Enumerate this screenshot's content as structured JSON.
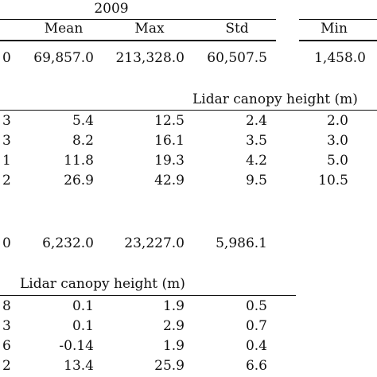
{
  "header": {
    "year": "2009",
    "columns": [
      "Mean",
      "Max",
      "Std"
    ],
    "right_column": "Min"
  },
  "row_top": {
    "lead": "0",
    "values": [
      "69,857.0",
      "213,328.0",
      "60,507.5"
    ],
    "min": "1,458.0"
  },
  "lidar_block_1": {
    "title": "Lidar canopy height (m)",
    "rows": [
      {
        "lead": "3",
        "values": [
          "5.4",
          "12.5",
          "2.4"
        ],
        "min": "2.0"
      },
      {
        "lead": "3",
        "values": [
          "8.2",
          "16.1",
          "3.5"
        ],
        "min": "3.0"
      },
      {
        "lead": "1",
        "values": [
          "11.8",
          "19.3",
          "4.2"
        ],
        "min": "5.0"
      },
      {
        "lead": "2",
        "values": [
          "26.9",
          "42.9",
          "9.5"
        ],
        "min": "10.5"
      }
    ]
  },
  "row_mid": {
    "lead": "0",
    "values": [
      "6,232.0",
      "23,227.0",
      "5,986.1"
    ]
  },
  "lidar_block_2": {
    "title": "Lidar canopy height (m)",
    "rows": [
      {
        "lead": "8",
        "values": [
          "0.1",
          "1.9",
          "0.5"
        ]
      },
      {
        "lead": "3",
        "values": [
          "0.1",
          "2.9",
          "0.7"
        ]
      },
      {
        "lead": "6",
        "values": [
          "-0.14",
          "1.9",
          "0.4"
        ]
      },
      {
        "lead": "2",
        "values": [
          "13.4",
          "25.9",
          "6.6"
        ]
      }
    ]
  }
}
